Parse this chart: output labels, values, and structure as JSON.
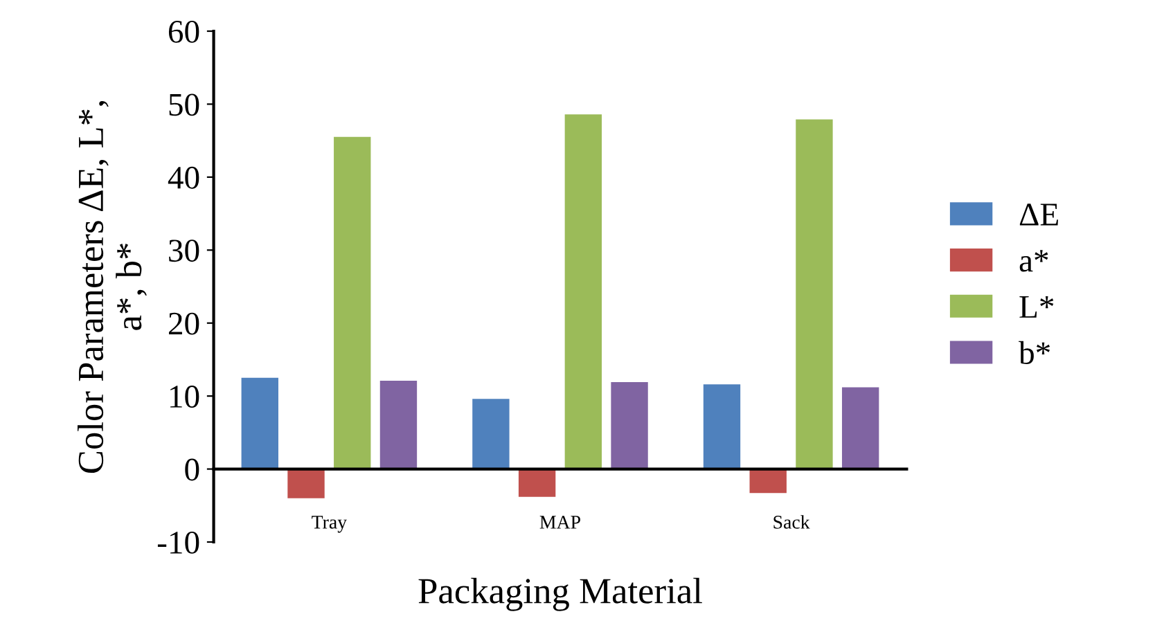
{
  "chart_data": {
    "type": "bar",
    "xlabel": "Packaging Material",
    "ylabel": "Color Parameters ΔE, L*,\na*, b*",
    "categories": [
      "Tray",
      "MAP",
      "Sack"
    ],
    "series": [
      {
        "name": "ΔE",
        "color": "#4f81bd",
        "values": [
          12.5,
          9.6,
          11.6
        ]
      },
      {
        "name": "a*",
        "color": "#c0504d",
        "values": [
          -4.0,
          -3.8,
          -3.3
        ]
      },
      {
        "name": "L*",
        "color": "#9bbb59",
        "values": [
          45.5,
          48.6,
          47.9
        ]
      },
      {
        "name": "b*",
        "color": "#8064a2",
        "values": [
          12.1,
          11.9,
          11.2
        ]
      }
    ],
    "ylim": [
      -10,
      60
    ],
    "yticks": [
      -10,
      0,
      10,
      20,
      30,
      40,
      50,
      60
    ],
    "grid": false,
    "legend": "right"
  }
}
